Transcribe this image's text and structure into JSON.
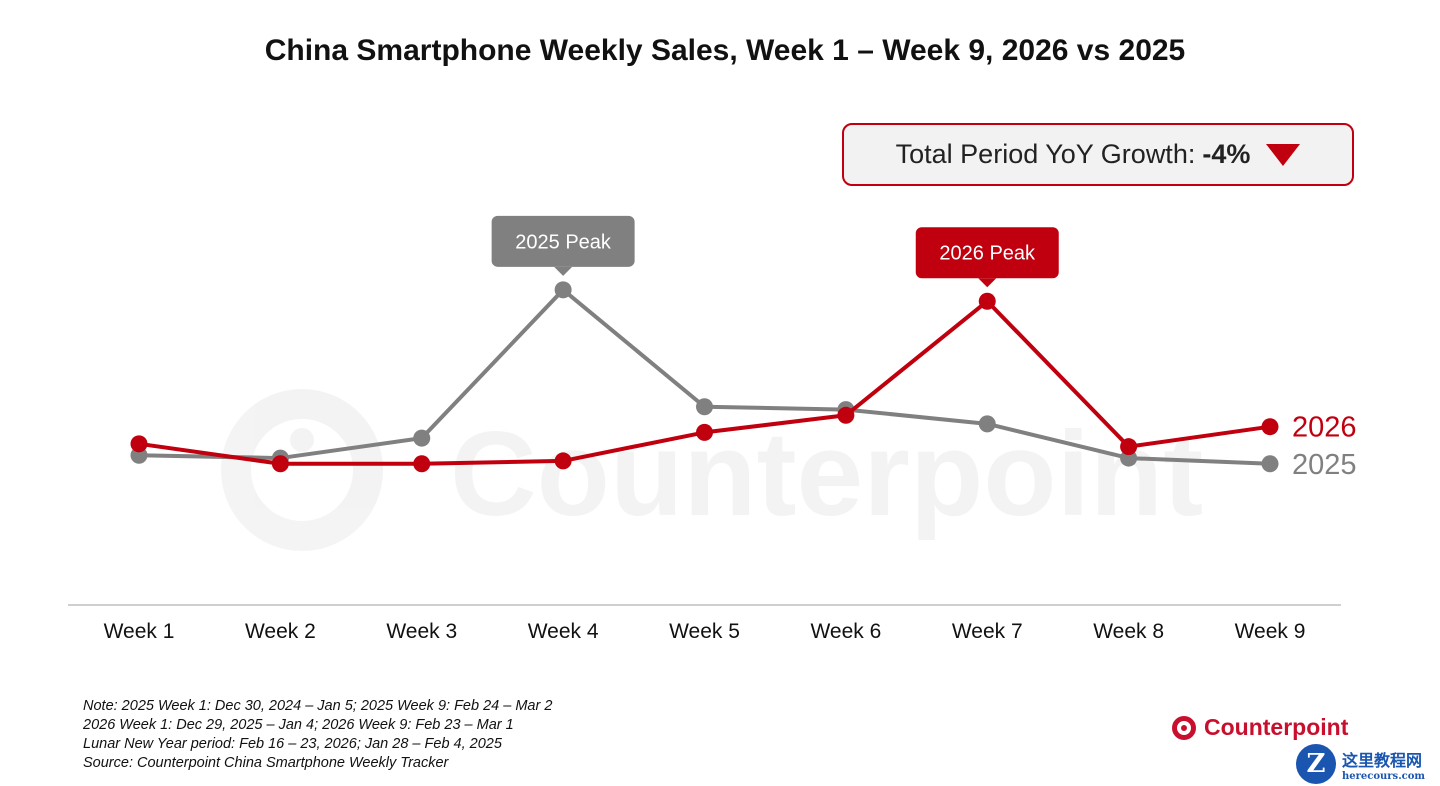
{
  "title": "China Smartphone Weekly Sales, Week 1 – Week 9, 2026 vs 2025",
  "yoy": {
    "label": "Total Period YoY Growth:",
    "value": "-4%",
    "icon": "triangle-down-icon",
    "color": "#c0000f"
  },
  "chart_data": {
    "type": "line",
    "categories": [
      "Week 1",
      "Week 2",
      "Week 3",
      "Week 4",
      "Week 5",
      "Week 6",
      "Week 7",
      "Week 8",
      "Week 9"
    ],
    "series": [
      {
        "name": "2025",
        "color": "#808080",
        "values": [
          42,
          41,
          48,
          100,
          59,
          58,
          53,
          41,
          39
        ]
      },
      {
        "name": "2026",
        "color": "#c0000f",
        "values": [
          46,
          39,
          39,
          40,
          50,
          56,
          96,
          45,
          52
        ]
      }
    ],
    "annotations": [
      {
        "text": "2025 Peak",
        "series": "2025",
        "category": "Week 4",
        "color": "#808080"
      },
      {
        "text": "2026 Peak",
        "series": "2026",
        "category": "Week 7",
        "color": "#c0000f"
      }
    ],
    "xlabel": "",
    "ylabel": "",
    "ylim": [
      0,
      108
    ],
    "y_axis_visible": false,
    "grid": false,
    "legend": "inline-right"
  },
  "notes": [
    "Note: 2025 Week 1: Dec 30, 2024 – Jan 5; 2025 Week 9: Feb 24 – Mar 2",
    "2026 Week 1: Dec 29, 2025 – Jan 4; 2026 Week 9: Feb 23 – Mar 1",
    "Lunar New Year period: Feb 16 – 23, 2026; Jan 28 – Feb 4, 2025",
    "Source: Counterpoint China Smartphone Weekly Tracker"
  ],
  "brand": {
    "name": "Counterpoint",
    "watermark": "Counterpoint"
  },
  "site_badge": {
    "letter": "Z",
    "name": "这里教程网",
    "url": "herecours.com"
  }
}
